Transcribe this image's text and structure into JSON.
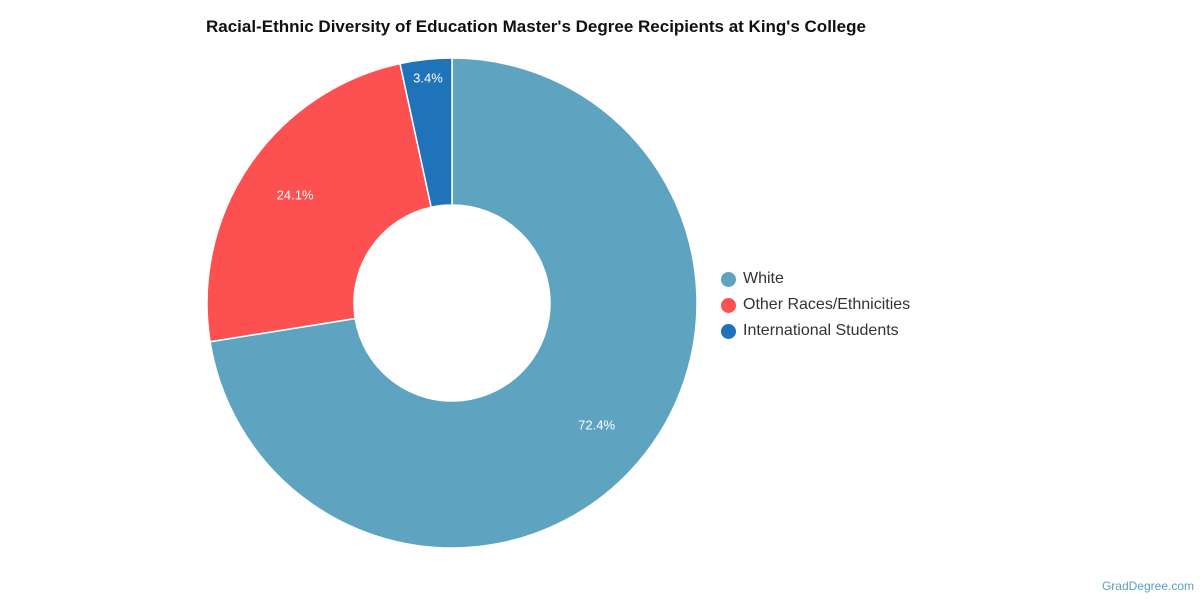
{
  "chart_data": {
    "type": "pie",
    "variant": "donut",
    "title": "Racial-Ethnic Diversity of Education Master's Degree Recipients at King's College",
    "categories": [
      "White",
      "Other Races/Ethnicities",
      "International Students"
    ],
    "values": [
      72.4,
      24.1,
      3.4
    ],
    "labels": [
      "72.4%",
      "24.1%",
      "3.4%"
    ],
    "colors": [
      "#5ea3c0",
      "#fd5050",
      "#1f73b8"
    ],
    "legend_position": "right"
  },
  "credit": "GradDegree.com"
}
